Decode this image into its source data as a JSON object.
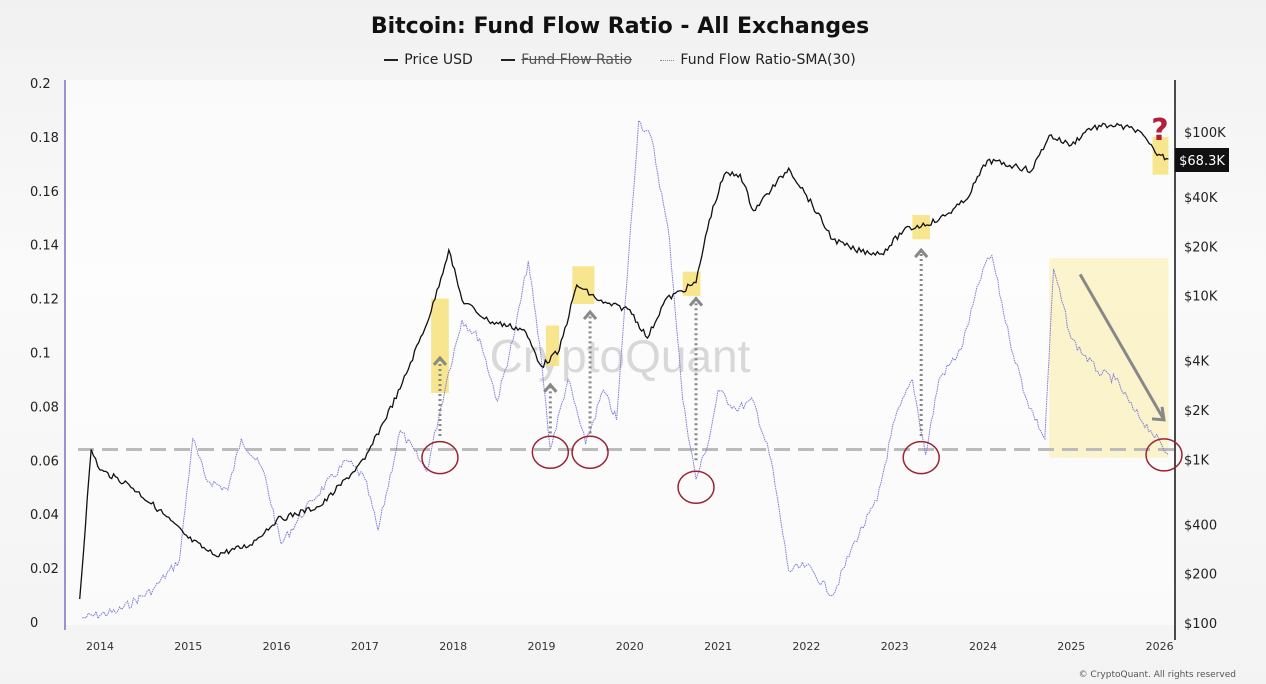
{
  "chart_data": {
    "type": "line",
    "title": "Bitcoin: Fund Flow Ratio - All Exchanges",
    "legend": [
      {
        "name": "Price USD",
        "color": "#111111",
        "style": "solid",
        "hidden": false
      },
      {
        "name": "Fund Flow Ratio",
        "color": "#111111",
        "style": "solid",
        "hidden": true
      },
      {
        "name": "Fund Flow Ratio-SMA(30)",
        "color": "#7b7bd6",
        "style": "dotted",
        "hidden": false
      }
    ],
    "legend_placement": "top-center",
    "x_ticks": [
      "2014",
      "2015",
      "2016",
      "2017",
      "2018",
      "2019",
      "2020",
      "2021",
      "2022",
      "2023",
      "2024",
      "2025",
      "2026"
    ],
    "y_left": {
      "ticks": [
        "0",
        "0.02",
        "0.04",
        "0.06",
        "0.08",
        "0.1",
        "0.12",
        "0.14",
        "0.16",
        "0.18",
        "0.2"
      ],
      "range": [
        0,
        0.2
      ]
    },
    "y_right": {
      "scale": "log",
      "ticks": [
        "$100",
        "$200",
        "$400",
        "$1K",
        "$2K",
        "$4K",
        "$10K",
        "$20K",
        "$40K",
        "$100K"
      ],
      "range": [
        100,
        130000
      ]
    },
    "current_price_label": "$68.3K",
    "series": [
      {
        "name": "Price USD",
        "axis": "right",
        "points": [
          [
            2013.77,
            140
          ],
          [
            2013.9,
            1150
          ],
          [
            2014.0,
            860
          ],
          [
            2014.33,
            700
          ],
          [
            2014.67,
            490
          ],
          [
            2015.0,
            330
          ],
          [
            2015.2,
            280
          ],
          [
            2015.3,
            260
          ],
          [
            2015.7,
            300
          ],
          [
            2016.0,
            425
          ],
          [
            2016.5,
            520
          ],
          [
            2017.0,
            1000
          ],
          [
            2017.4,
            2700
          ],
          [
            2017.75,
            8000
          ],
          [
            2017.95,
            19000
          ],
          [
            2018.1,
            9400
          ],
          [
            2018.4,
            7000
          ],
          [
            2018.8,
            6200
          ],
          [
            2019.0,
            3700
          ],
          [
            2019.2,
            4600
          ],
          [
            2019.4,
            11600
          ],
          [
            2019.7,
            9000
          ],
          [
            2020.0,
            8200
          ],
          [
            2020.2,
            5500
          ],
          [
            2020.4,
            9400
          ],
          [
            2020.75,
            12000
          ],
          [
            2020.9,
            29000
          ],
          [
            2021.07,
            55000
          ],
          [
            2021.25,
            55000
          ],
          [
            2021.4,
            33000
          ],
          [
            2021.8,
            60000
          ],
          [
            2022.0,
            41000
          ],
          [
            2022.3,
            22000
          ],
          [
            2022.55,
            19000
          ],
          [
            2022.85,
            18000
          ],
          [
            2023.1,
            25000
          ],
          [
            2023.5,
            29000
          ],
          [
            2023.8,
            38000
          ],
          [
            2024.05,
            67000
          ],
          [
            2024.35,
            62000
          ],
          [
            2024.55,
            58000
          ],
          [
            2024.75,
            95000
          ],
          [
            2025.0,
            83000
          ],
          [
            2025.2,
            105000
          ],
          [
            2025.45,
            110000
          ],
          [
            2025.75,
            103000
          ],
          [
            2025.95,
            75000
          ],
          [
            2026.1,
            68300
          ]
        ]
      },
      {
        "name": "Fund Flow Ratio-SMA(30)",
        "axis": "left",
        "points": [
          [
            2013.8,
            0.0015
          ],
          [
            2014.2,
            0.004
          ],
          [
            2014.6,
            0.012
          ],
          [
            2014.9,
            0.023
          ],
          [
            2015.05,
            0.068
          ],
          [
            2015.2,
            0.053
          ],
          [
            2015.45,
            0.049
          ],
          [
            2015.6,
            0.068
          ],
          [
            2015.85,
            0.056
          ],
          [
            2016.05,
            0.029
          ],
          [
            2016.4,
            0.045
          ],
          [
            2016.8,
            0.06
          ],
          [
            2017.0,
            0.053
          ],
          [
            2017.15,
            0.034
          ],
          [
            2017.4,
            0.071
          ],
          [
            2017.7,
            0.056
          ],
          [
            2017.95,
            0.093
          ],
          [
            2018.1,
            0.112
          ],
          [
            2018.3,
            0.105
          ],
          [
            2018.5,
            0.082
          ],
          [
            2018.7,
            0.108
          ],
          [
            2018.85,
            0.134
          ],
          [
            2019.0,
            0.097
          ],
          [
            2019.1,
            0.064
          ],
          [
            2019.3,
            0.09
          ],
          [
            2019.5,
            0.066
          ],
          [
            2019.7,
            0.086
          ],
          [
            2019.85,
            0.075
          ],
          [
            2020.1,
            0.186
          ],
          [
            2020.25,
            0.179
          ],
          [
            2020.45,
            0.142
          ],
          [
            2020.6,
            0.082
          ],
          [
            2020.75,
            0.053
          ],
          [
            2020.9,
            0.068
          ],
          [
            2021.0,
            0.086
          ],
          [
            2021.2,
            0.079
          ],
          [
            2021.4,
            0.082
          ],
          [
            2021.6,
            0.06
          ],
          [
            2021.8,
            0.019
          ],
          [
            2022.0,
            0.021
          ],
          [
            2022.3,
            0.01
          ],
          [
            2022.55,
            0.03
          ],
          [
            2022.8,
            0.045
          ],
          [
            2023.0,
            0.075
          ],
          [
            2023.2,
            0.09
          ],
          [
            2023.35,
            0.062
          ],
          [
            2023.5,
            0.09
          ],
          [
            2023.75,
            0.101
          ],
          [
            2024.0,
            0.131
          ],
          [
            2024.1,
            0.136
          ],
          [
            2024.3,
            0.105
          ],
          [
            2024.5,
            0.082
          ],
          [
            2024.7,
            0.068
          ],
          [
            2024.8,
            0.131
          ],
          [
            2025.0,
            0.105
          ],
          [
            2025.3,
            0.093
          ],
          [
            2025.5,
            0.09
          ],
          [
            2025.7,
            0.079
          ],
          [
            2025.9,
            0.071
          ],
          [
            2026.1,
            0.062
          ]
        ]
      }
    ],
    "annotations": {
      "support_level": 0.064,
      "question_mark": "?"
    },
    "grid": false
  },
  "watermark": "CryptoQuant",
  "footer": "© CryptoQuant. All rights reserved"
}
